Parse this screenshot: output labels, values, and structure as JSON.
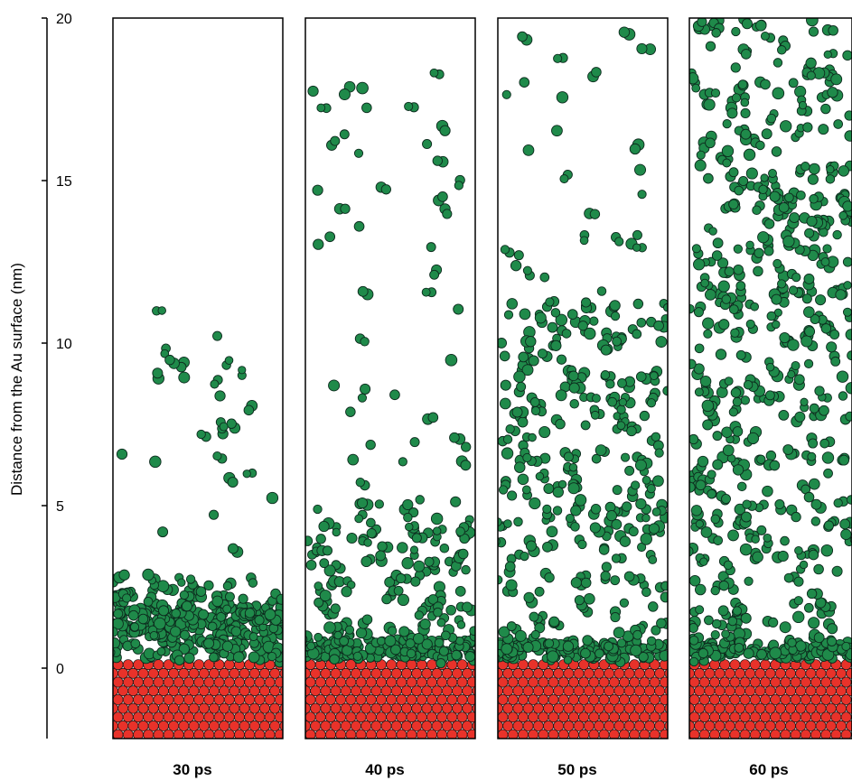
{
  "chart_data": {
    "type": "scatter",
    "ylabel": "Distance from the Au surface (nm)",
    "ylim": [
      -2.2,
      20
    ],
    "y_ticks": [
      "20",
      "15",
      "10",
      "5",
      "0"
    ],
    "colors": {
      "gold_surface": "#e8322a",
      "molecules": "#1f8a4a",
      "outline": "#000000"
    },
    "panels": [
      {
        "label": "30 ps",
        "front_nm": 2.8,
        "dense_nm": 1.6,
        "max_nm": 11.0
      },
      {
        "label": "40 ps",
        "front_nm": 5.2,
        "dense_nm": 0.6,
        "max_nm": 18.8
      },
      {
        "label": "50 ps",
        "front_nm": 11.3,
        "dense_nm": 0.5,
        "max_nm": 19.7
      },
      {
        "label": "60 ps",
        "front_nm": 20.0,
        "dense_nm": 0.5,
        "max_nm": 20.0
      }
    ]
  }
}
